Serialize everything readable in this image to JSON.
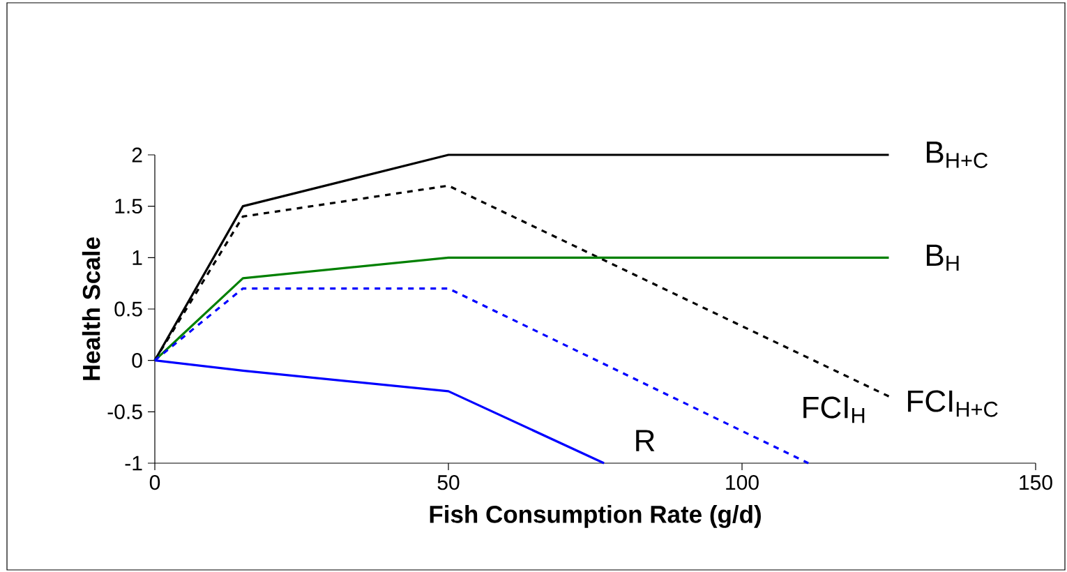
{
  "chart_data": {
    "type": "line",
    "xlabel": "Fish Consumption Rate (g/d)",
    "ylabel": "Health Scale",
    "xlim": [
      0,
      150
    ],
    "ylim": [
      -1,
      2
    ],
    "xticks": [
      0,
      50,
      100,
      150
    ],
    "yticks": [
      -1,
      -0.5,
      0,
      0.5,
      1,
      1.5,
      2
    ],
    "series": [
      {
        "name": "B$_{H+C}$",
        "color": "#000000",
        "line_style": "solid",
        "x": [
          0,
          15,
          50,
          125
        ],
        "values": [
          0,
          1.5,
          2,
          2
        ]
      },
      {
        "name": "FCI$_{H+C}$",
        "color": "#000000",
        "line_style": "dashed",
        "x": [
          0,
          15,
          50,
          125
        ],
        "values": [
          0,
          1.4,
          1.7,
          -0.35
        ]
      },
      {
        "name": "B$_{H}$",
        "color": "#008000",
        "line_style": "solid",
        "x": [
          0,
          15,
          50,
          125
        ],
        "values": [
          0,
          0.8,
          1,
          1
        ]
      },
      {
        "name": "FCI$_{H}$",
        "color": "#0000ff",
        "line_style": "dashed",
        "x": [
          0,
          15,
          50,
          111.3
        ],
        "values": [
          0,
          0.7,
          0.7,
          -1
        ]
      },
      {
        "name": "R",
        "color": "#0000ff",
        "line_style": "solid",
        "x": [
          0,
          15,
          50,
          76.5
        ],
        "values": [
          0,
          -0.1,
          -0.3,
          -1
        ]
      }
    ]
  }
}
